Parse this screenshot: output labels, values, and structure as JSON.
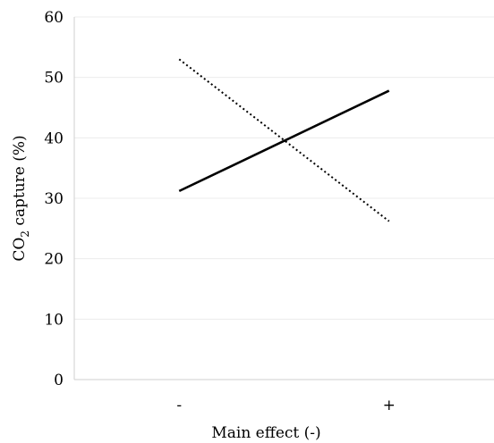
{
  "chart_data": {
    "type": "line",
    "categories": [
      "-",
      "+"
    ],
    "series": [
      {
        "values": [
          31.2,
          47.8
        ],
        "style": "solid",
        "color": "#000000"
      },
      {
        "values": [
          53.0,
          26.2
        ],
        "style": "dotted",
        "color": "#000000"
      }
    ],
    "xlabel": "Main effect (-)",
    "ylabel": {
      "prefix": "CO",
      "subscript": "2",
      "suffix": " capture (%)"
    },
    "ylim": [
      0,
      60
    ],
    "yticks": [
      0,
      10,
      20,
      30,
      40,
      50,
      60
    ],
    "grid": true,
    "legend": "none"
  }
}
